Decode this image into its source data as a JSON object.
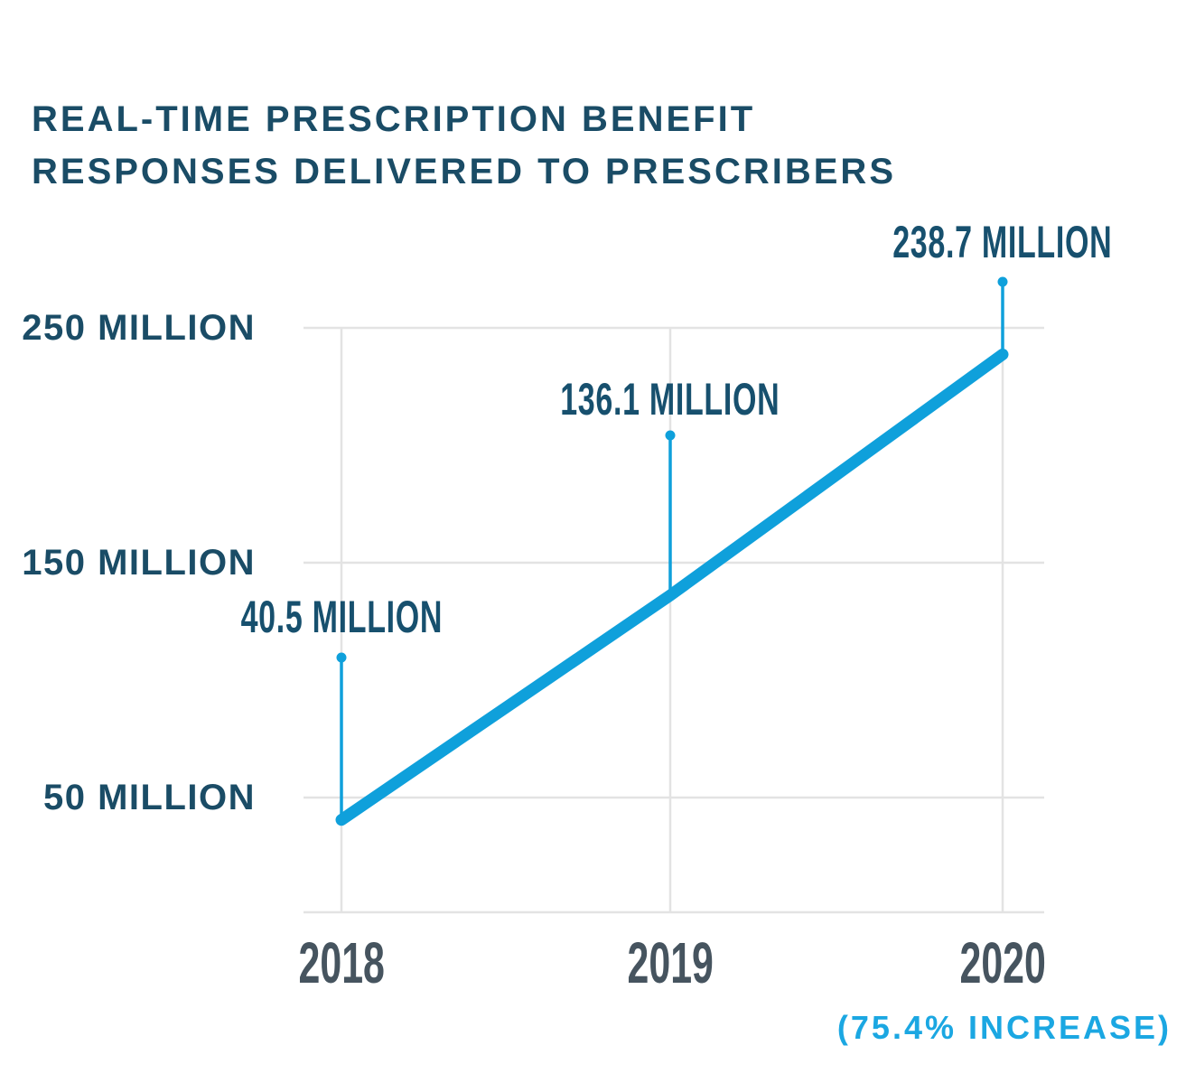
{
  "header": {
    "title_lines": [
      "REAL-TIME PRESCRIPTION BENEFIT",
      "RESPONSES DELIVERED TO PRESCRIBERS"
    ]
  },
  "chart_data": {
    "type": "line",
    "title": "REAL-TIME PRESCRIPTION BENEFIT RESPONSES DELIVERED TO PRESCRIBERS",
    "categories": [
      "2018",
      "2019",
      "2020"
    ],
    "values": [
      40.5,
      136.1,
      238.7
    ],
    "unit": "million responses",
    "point_labels": [
      "40.5 MILLION",
      "136.1 MILLION",
      "238.7 MILLION"
    ],
    "y_ticks": [
      {
        "value": 250,
        "label": "250 MILLION"
      },
      {
        "value": 150,
        "label": "150 MILLION"
      },
      {
        "value": 50,
        "label": "50 MILLION"
      }
    ],
    "xlabel": "",
    "ylabel": "",
    "ylim": [
      0,
      265
    ],
    "grid": "on",
    "legend": "none",
    "annotation": "(75.4% INCREASE)"
  },
  "colors": {
    "heading": "#1a4c66",
    "data_label": "#17506e",
    "axis_label": "#46545f",
    "line": "#0fa0db",
    "accent_text": "#1ba7e2",
    "grid": "#e3e3e3",
    "background": "#ffffff"
  }
}
